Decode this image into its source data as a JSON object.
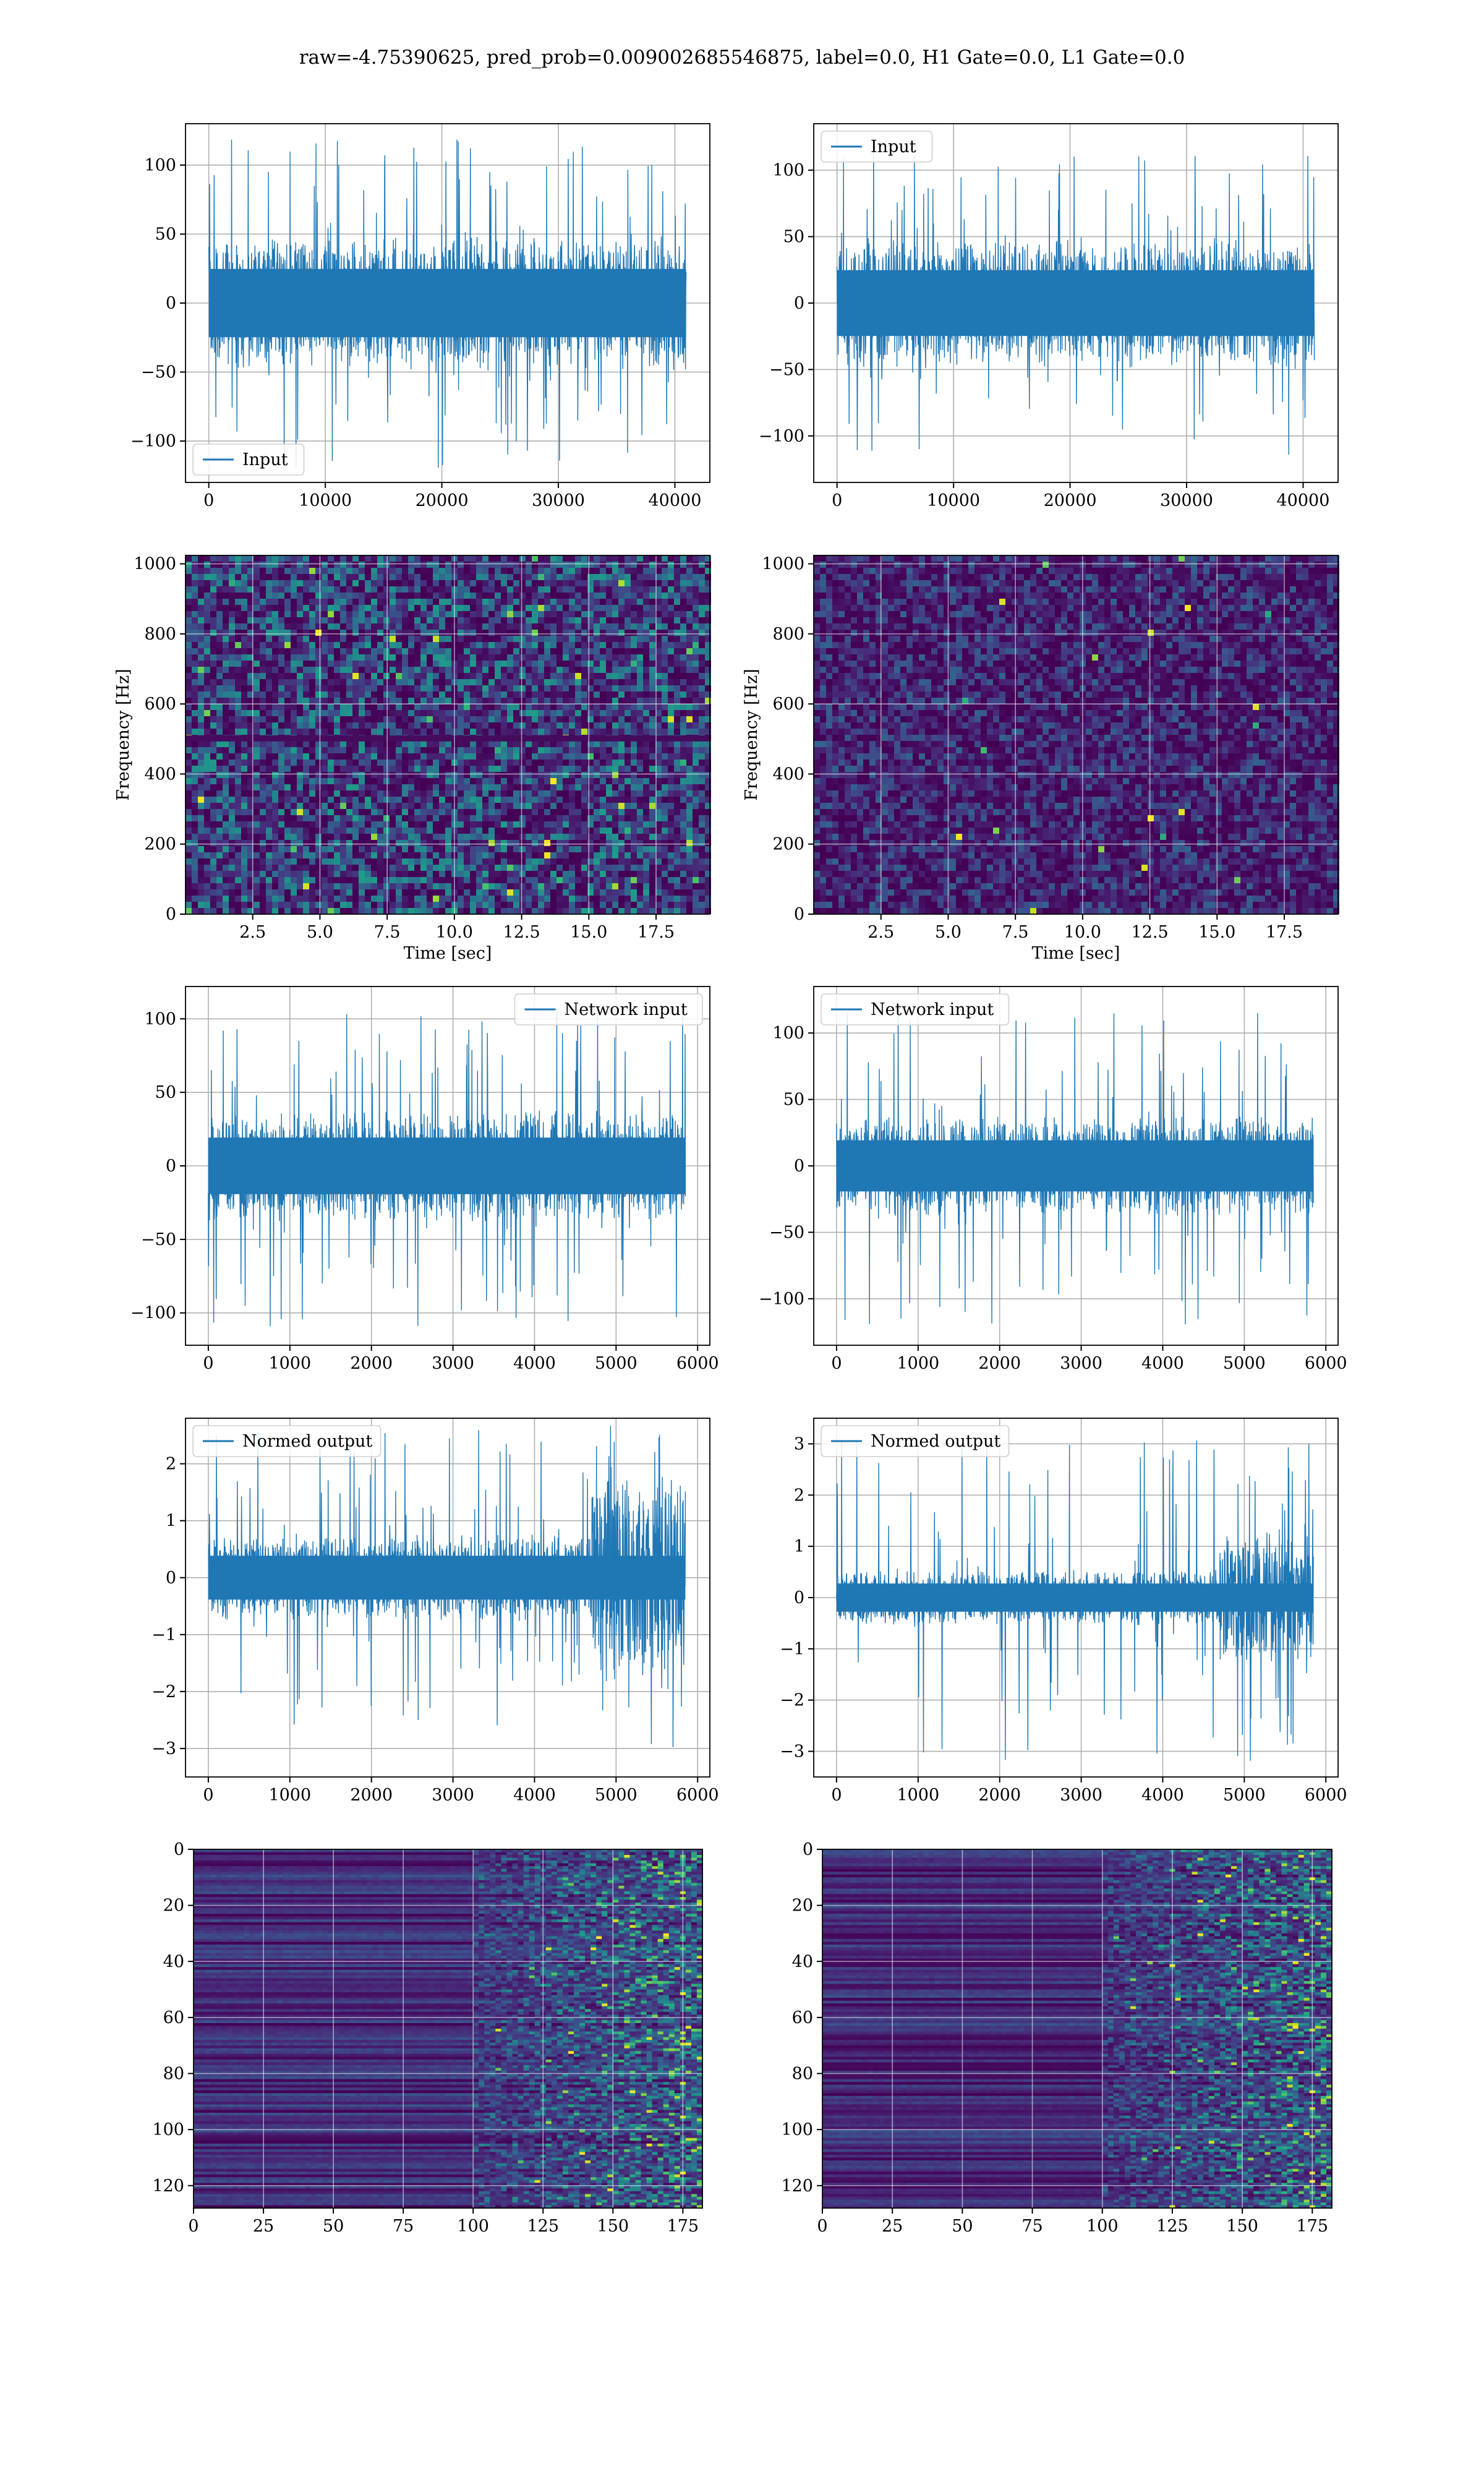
{
  "title": "raw=-4.75390625, pred_prob=0.009002685546875, label=0.0, H1 Gate=0.0, L1 Gate=0.0",
  "colors": {
    "line": "#1f77b4",
    "grid": "#b0b0b0",
    "viridis_dark": "#440154",
    "viridis_mid": "#31688e",
    "viridis_teal": "#35b779",
    "viridis_yellow": "#fde725"
  },
  "chart_data": [
    {
      "id": "ts-input-left",
      "type": "line",
      "series": [
        {
          "name": "Input",
          "x_range": [
            0,
            40960
          ],
          "y_typical": [
            -45,
            45
          ],
          "y_extremes": [
            -120,
            120
          ]
        }
      ],
      "legend": "lower-left",
      "xlim": [
        -2000,
        43000
      ],
      "ylim": [
        -130,
        130
      ],
      "xticks": [
        0,
        10000,
        20000,
        30000,
        40000
      ],
      "yticks": [
        -100,
        -50,
        0,
        50,
        100
      ],
      "grid": true
    },
    {
      "id": "ts-input-right",
      "type": "line",
      "series": [
        {
          "name": "Input",
          "x_range": [
            0,
            40960
          ],
          "y_typical": [
            -45,
            45
          ],
          "y_extremes": [
            -115,
            115
          ]
        }
      ],
      "legend": "upper-left",
      "xlim": [
        -2000,
        43000
      ],
      "ylim": [
        -135,
        135
      ],
      "xticks": [
        0,
        10000,
        20000,
        30000,
        40000
      ],
      "yticks": [
        -100,
        -50,
        0,
        50,
        100
      ],
      "grid": true
    },
    {
      "id": "spec-left",
      "type": "heatmap",
      "colormap": "viridis",
      "xlabel": "Time [sec]",
      "ylabel": "Frequency [Hz]",
      "xlim": [
        0,
        19.5
      ],
      "ylim": [
        0,
        1024
      ],
      "xticks": [
        2.5,
        5.0,
        7.5,
        10.0,
        12.5,
        15.0,
        17.5
      ],
      "xtick_labels": [
        "2.5",
        "5.0",
        "7.5",
        "10.0",
        "12.5",
        "15.0",
        "17.5"
      ],
      "yticks": [
        0,
        200,
        400,
        600,
        800,
        1000
      ],
      "grid": true
    },
    {
      "id": "spec-right",
      "type": "heatmap",
      "colormap": "viridis",
      "xlabel": "Time [sec]",
      "ylabel": "Frequency [Hz]",
      "xlim": [
        0,
        19.5
      ],
      "ylim": [
        0,
        1024
      ],
      "xticks": [
        2.5,
        5.0,
        7.5,
        10.0,
        12.5,
        15.0,
        17.5
      ],
      "xtick_labels": [
        "2.5",
        "5.0",
        "7.5",
        "10.0",
        "12.5",
        "15.0",
        "17.5"
      ],
      "yticks": [
        0,
        200,
        400,
        600,
        800,
        1000
      ],
      "grid": true
    },
    {
      "id": "ts-network-left",
      "type": "line",
      "series": [
        {
          "name": "Network input",
          "x_range": [
            0,
            5850
          ],
          "y_typical": [
            -35,
            35
          ],
          "y_extremes": [
            -110,
            110
          ]
        }
      ],
      "legend": "upper-right",
      "xlim": [
        -280,
        6150
      ],
      "ylim": [
        -122,
        122
      ],
      "xticks": [
        0,
        1000,
        2000,
        3000,
        4000,
        5000,
        6000
      ],
      "yticks": [
        -100,
        -50,
        0,
        50,
        100
      ],
      "grid": true
    },
    {
      "id": "ts-network-right",
      "type": "line",
      "series": [
        {
          "name": "Network input",
          "x_range": [
            0,
            5850
          ],
          "y_typical": [
            -35,
            35
          ],
          "y_extremes": [
            -120,
            120
          ]
        }
      ],
      "legend": "upper-left",
      "xlim": [
        -280,
        6150
      ],
      "ylim": [
        -135,
        135
      ],
      "xticks": [
        0,
        1000,
        2000,
        3000,
        4000,
        5000,
        6000
      ],
      "yticks": [
        -100,
        -50,
        0,
        50,
        100
      ],
      "grid": true
    },
    {
      "id": "ts-normed-left",
      "type": "line",
      "series": [
        {
          "name": "Normed output",
          "x_range": [
            0,
            5850
          ],
          "y_typical": [
            -0.7,
            0.7
          ],
          "y_extremes": [
            -3.1,
            2.6
          ],
          "burst_start": 4700
        }
      ],
      "legend": "upper-left",
      "xlim": [
        -280,
        6150
      ],
      "ylim": [
        -3.5,
        2.8
      ],
      "xticks": [
        0,
        1000,
        2000,
        3000,
        4000,
        5000,
        6000
      ],
      "yticks": [
        -3,
        -2,
        -1,
        0,
        1,
        2
      ],
      "grid": true
    },
    {
      "id": "ts-normed-right",
      "type": "line",
      "series": [
        {
          "name": "Normed output",
          "x_range": [
            0,
            5850
          ],
          "y_typical": [
            -0.5,
            0.5
          ],
          "y_extremes": [
            -3.2,
            3.2
          ],
          "burst_start": 4700
        }
      ],
      "legend": "upper-left",
      "xlim": [
        -280,
        6150
      ],
      "ylim": [
        -3.5,
        3.5
      ],
      "xticks": [
        0,
        1000,
        2000,
        3000,
        4000,
        5000,
        6000
      ],
      "yticks": [
        -3,
        -2,
        -1,
        0,
        1,
        2,
        3
      ],
      "grid": true
    },
    {
      "id": "feat-left",
      "type": "heatmap",
      "colormap": "viridis",
      "xlim": [
        0,
        182
      ],
      "ylim": [
        128,
        0
      ],
      "xticks": [
        0,
        25,
        50,
        75,
        100,
        125,
        150,
        175
      ],
      "yticks": [
        0,
        20,
        40,
        60,
        80,
        100,
        120
      ],
      "grid": true
    },
    {
      "id": "feat-right",
      "type": "heatmap",
      "colormap": "viridis",
      "xlim": [
        0,
        182
      ],
      "ylim": [
        128,
        0
      ],
      "xticks": [
        0,
        25,
        50,
        75,
        100,
        125,
        150,
        175
      ],
      "yticks": [
        0,
        20,
        40,
        60,
        80,
        100,
        120
      ],
      "grid": true
    }
  ]
}
